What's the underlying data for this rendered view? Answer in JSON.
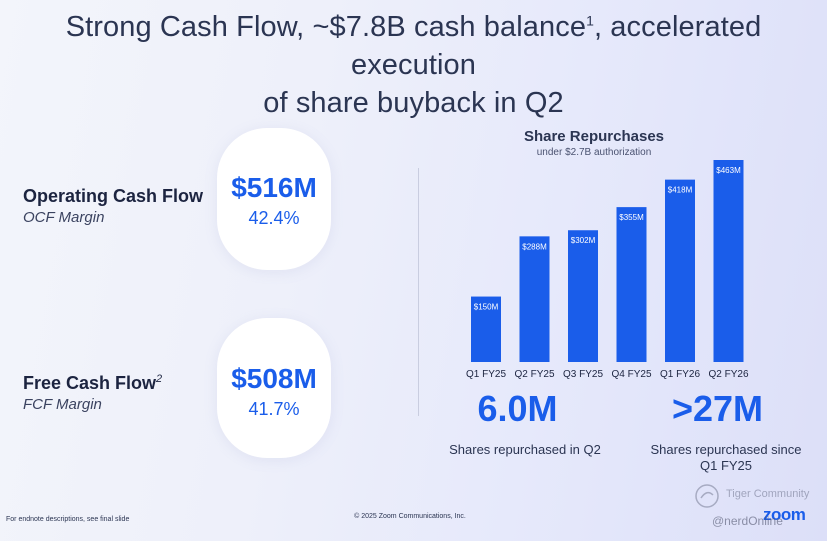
{
  "slide": {
    "title_line1": "Strong Cash Flow, ~$7.8B cash balance",
    "title_sup": "1",
    "title_line1_end": ", accelerated execution",
    "title_line2": "of share buyback in Q2"
  },
  "ocf": {
    "label": "Operating Cash Flow",
    "sub": "OCF Margin",
    "value": "$516M",
    "margin": "42.4%"
  },
  "fcf": {
    "label": "Free Cash Flow",
    "sup": "2",
    "sub": "FCF Margin",
    "value": "$508M",
    "margin": "41.7%"
  },
  "chart_data": {
    "type": "bar",
    "title": "Share Repurchases",
    "subtitle": "under $2.7B authorization",
    "categories": [
      "Q1 FY25",
      "Q2 FY25",
      "Q3 FY25",
      "Q4 FY25",
      "Q1 FY26",
      "Q2 FY26"
    ],
    "values": [
      150,
      288,
      302,
      355,
      418,
      463
    ],
    "data_labels": [
      "$150M",
      "$288M",
      "$302M",
      "$355M",
      "$418M",
      "$463M"
    ],
    "ylim": [
      0,
      463
    ],
    "bar_color": "#1a5dea",
    "grid": false
  },
  "stats": {
    "left_value": "6.0M",
    "left_desc": "Shares repurchased in Q2",
    "right_value": ">27M",
    "right_desc_line1": "Shares repurchased since",
    "right_desc_line2": "Q1 FY25"
  },
  "footer": {
    "note": "For endnote descriptions, see final slide",
    "copyright": "© 2025 Zoom Communications, Inc.",
    "brand": "zoom",
    "watermark": "Tiger Community",
    "handle": "@nerdOnline"
  },
  "colors": {
    "accent": "#1a5dea",
    "text": "#2b3552"
  }
}
